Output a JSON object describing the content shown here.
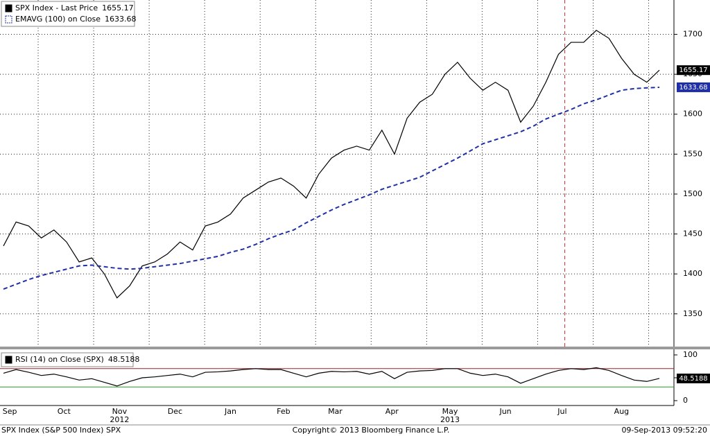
{
  "chart_data": [
    {
      "type": "line",
      "series": [
        {
          "name": "SPX Index - Last Price",
          "color": "#000000",
          "values": [
            1435,
            1465,
            1460,
            1445,
            1455,
            1440,
            1415,
            1420,
            1400,
            1370,
            1385,
            1410,
            1415,
            1425,
            1440,
            1430,
            1460,
            1465,
            1475,
            1495,
            1505,
            1515,
            1520,
            1510,
            1495,
            1525,
            1545,
            1555,
            1560,
            1555,
            1580,
            1550,
            1595,
            1615,
            1625,
            1650,
            1665,
            1645,
            1630,
            1640,
            1630,
            1590,
            1610,
            1640,
            1675,
            1690,
            1690,
            1705,
            1695,
            1670,
            1650,
            1640,
            1655.17
          ]
        },
        {
          "name": "EMAVG (100) on Close",
          "color": "#1f2fa8",
          "dashed": true,
          "values": [
            1381,
            1387,
            1393,
            1398,
            1402,
            1406,
            1410,
            1411,
            1409,
            1407,
            1406,
            1407,
            1409,
            1411,
            1413,
            1416,
            1419,
            1422,
            1427,
            1431,
            1437,
            1444,
            1450,
            1455,
            1464,
            1472,
            1480,
            1487,
            1493,
            1499,
            1506,
            1511,
            1516,
            1521,
            1529,
            1537,
            1545,
            1554,
            1563,
            1568,
            1573,
            1578,
            1585,
            1594,
            1600,
            1606,
            1613,
            1618,
            1624,
            1630,
            1632,
            1633,
            1633.68
          ]
        }
      ],
      "xlim": [
        0,
        52
      ],
      "ylim": [
        1309,
        1743
      ],
      "yticks": [
        1350,
        1400,
        1450,
        1500,
        1550,
        1600,
        1650,
        1700
      ],
      "xgrid": [
        2.75,
        7.15,
        11.55,
        15.95,
        20.35,
        24.75,
        29.15,
        33.55,
        37.95,
        42.35,
        46.75,
        51.15
      ],
      "marker_x": 44.5,
      "grid": true
    },
    {
      "type": "line",
      "series": [
        {
          "name": "RSI (14) on Close (SPX)",
          "color": "#000000",
          "values": [
            60,
            68,
            62,
            55,
            58,
            52,
            45,
            48,
            40,
            32,
            42,
            50,
            52,
            55,
            58,
            52,
            62,
            63,
            65,
            68,
            70,
            68,
            68,
            60,
            52,
            60,
            64,
            63,
            64,
            58,
            64,
            48,
            62,
            65,
            66,
            70,
            70,
            60,
            55,
            58,
            52,
            38,
            48,
            58,
            66,
            70,
            68,
            72,
            66,
            55,
            45,
            42,
            48.5188
          ]
        }
      ],
      "xlim": [
        0,
        52
      ],
      "ylim": [
        -10.6,
        110.6
      ],
      "yticks": [
        0,
        50,
        100
      ],
      "levels": [
        {
          "value": 70,
          "color": "#a02020"
        },
        {
          "value": 30,
          "color": "#20a020"
        }
      ],
      "xticks": [
        {
          "value": 0.5,
          "label": "Sep"
        },
        {
          "value": 4.8,
          "label": "Oct"
        },
        {
          "value": 9.2,
          "label": "Nov"
        },
        {
          "value": 13.6,
          "label": "Dec"
        },
        {
          "value": 18,
          "label": "Jan"
        },
        {
          "value": 22.2,
          "label": "Feb"
        },
        {
          "value": 26.3,
          "label": "Mar"
        },
        {
          "value": 30.8,
          "label": "Apr"
        },
        {
          "value": 35.4,
          "label": "May"
        },
        {
          "value": 39.8,
          "label": "Jun"
        },
        {
          "value": 44.3,
          "label": "Jul"
        },
        {
          "value": 49,
          "label": "Aug"
        }
      ],
      "years": [
        {
          "value": 9.2,
          "label": "2012"
        },
        {
          "value": 35.4,
          "label": "2013"
        }
      ]
    }
  ],
  "footer": {
    "left": "SPX Index (S&P 500 Index) SPX",
    "center": "Copyright© 2013 Bloomberg Finance L.P.",
    "right": "09-Sep-2013 09:52:20"
  }
}
